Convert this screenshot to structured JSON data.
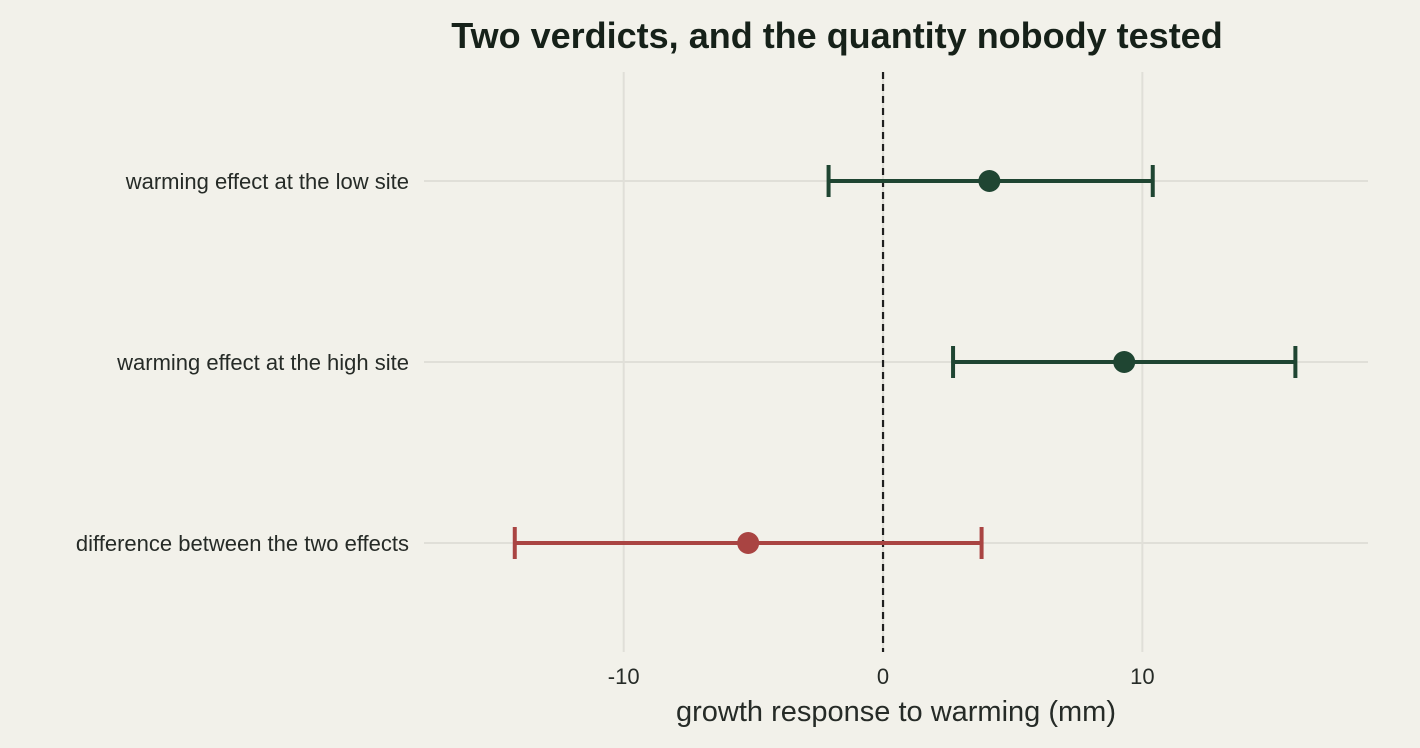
{
  "chart_data": {
    "type": "forest",
    "title": "Two verdicts, and the quantity nobody tested",
    "xlabel": "growth response to warming (mm)",
    "ylabel": "",
    "xlim": [
      -17.7,
      18.7
    ],
    "xticks": [
      -10,
      0,
      10
    ],
    "xtick_labels": [
      "-10",
      "0",
      "10"
    ],
    "reference_line": 0,
    "grid": true,
    "legend": "none",
    "colors": {
      "background": "#f2f1ea",
      "grid": "#e0dfd8",
      "reference": "#1f1f1f",
      "effect": "#1f4532",
      "difference": "#a94442"
    },
    "rows": [
      {
        "label": "warming effect at the low site",
        "estimate": 4.1,
        "lower": -2.1,
        "upper": 10.4,
        "color": "#1f4532"
      },
      {
        "label": "warming effect at the high site",
        "estimate": 9.3,
        "lower": 2.7,
        "upper": 15.9,
        "color": "#1f4532"
      },
      {
        "label": "difference between the two effects",
        "estimate": -5.2,
        "lower": -14.2,
        "upper": 3.8,
        "color": "#a94442"
      }
    ]
  }
}
